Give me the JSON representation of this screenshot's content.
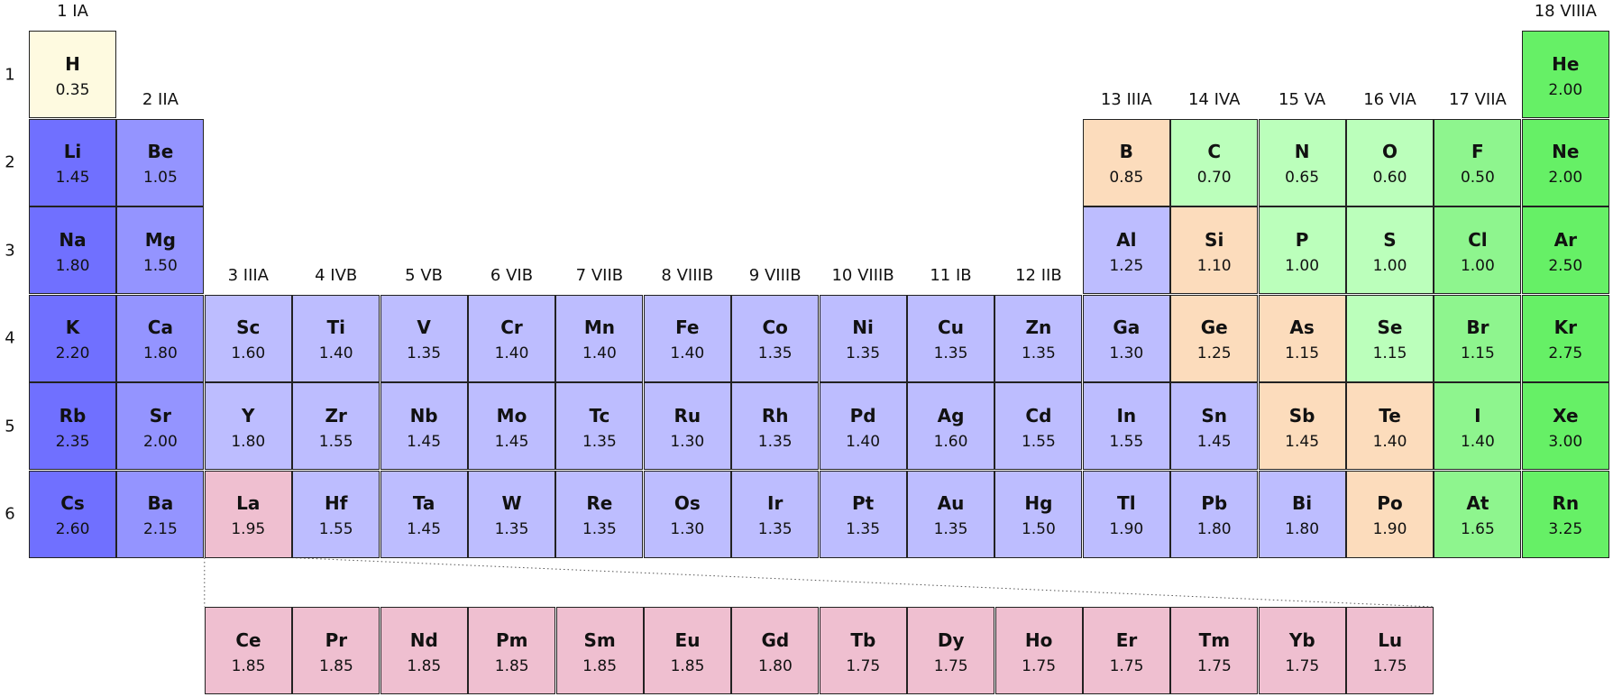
{
  "colors": {
    "hydrogen": "#fefae0",
    "alkali": "#7070ff",
    "alkaline_earth": "#9494ff",
    "metal": "#bdbdff",
    "metalloid": "#fcdcbc",
    "nonmetal": "#bbffbb",
    "halogen": "#8ef58e",
    "noble_gas": "#66f066",
    "lanthanide": "#efbfd0",
    "border": "#222222"
  },
  "group_labels": [
    {
      "group": 1,
      "row": 1,
      "text": "1 IA"
    },
    {
      "group": 2,
      "row": 2,
      "text": "2 IIA"
    },
    {
      "group": 3,
      "row": 4,
      "text": "3 IIIA"
    },
    {
      "group": 4,
      "row": 4,
      "text": "4 IVB"
    },
    {
      "group": 5,
      "row": 4,
      "text": "5 VB"
    },
    {
      "group": 6,
      "row": 4,
      "text": "6 VIB"
    },
    {
      "group": 7,
      "row": 4,
      "text": "7 VIIB"
    },
    {
      "group": 8,
      "row": 4,
      "text": "8 VIIIB"
    },
    {
      "group": 9,
      "row": 4,
      "text": "9 VIIIB"
    },
    {
      "group": 10,
      "row": 4,
      "text": "10 VIIIB"
    },
    {
      "group": 11,
      "row": 4,
      "text": "11 IB"
    },
    {
      "group": 12,
      "row": 4,
      "text": "12 IIB"
    },
    {
      "group": 13,
      "row": 2,
      "text": "13 IIIA"
    },
    {
      "group": 14,
      "row": 2,
      "text": "14 IVA"
    },
    {
      "group": 15,
      "row": 2,
      "text": "15 VA"
    },
    {
      "group": 16,
      "row": 2,
      "text": "16 VIA"
    },
    {
      "group": 17,
      "row": 2,
      "text": "17 VIIA"
    },
    {
      "group": 18,
      "row": 1,
      "text": "18 VIIIA"
    }
  ],
  "period_labels": [
    "1",
    "2",
    "3",
    "4",
    "5",
    "6"
  ],
  "elements": [
    {
      "symbol": "H",
      "value": "0.35",
      "period": 1,
      "group": 1,
      "category": "hydrogen"
    },
    {
      "symbol": "He",
      "value": "2.00",
      "period": 1,
      "group": 18,
      "category": "noble_gas"
    },
    {
      "symbol": "Li",
      "value": "1.45",
      "period": 2,
      "group": 1,
      "category": "alkali"
    },
    {
      "symbol": "Be",
      "value": "1.05",
      "period": 2,
      "group": 2,
      "category": "alkaline_earth"
    },
    {
      "symbol": "B",
      "value": "0.85",
      "period": 2,
      "group": 13,
      "category": "metalloid"
    },
    {
      "symbol": "C",
      "value": "0.70",
      "period": 2,
      "group": 14,
      "category": "nonmetal"
    },
    {
      "symbol": "N",
      "value": "0.65",
      "period": 2,
      "group": 15,
      "category": "nonmetal"
    },
    {
      "symbol": "O",
      "value": "0.60",
      "period": 2,
      "group": 16,
      "category": "nonmetal"
    },
    {
      "symbol": "F",
      "value": "0.50",
      "period": 2,
      "group": 17,
      "category": "halogen"
    },
    {
      "symbol": "Ne",
      "value": "2.00",
      "period": 2,
      "group": 18,
      "category": "noble_gas"
    },
    {
      "symbol": "Na",
      "value": "1.80",
      "period": 3,
      "group": 1,
      "category": "alkali"
    },
    {
      "symbol": "Mg",
      "value": "1.50",
      "period": 3,
      "group": 2,
      "category": "alkaline_earth"
    },
    {
      "symbol": "Al",
      "value": "1.25",
      "period": 3,
      "group": 13,
      "category": "metal"
    },
    {
      "symbol": "Si",
      "value": "1.10",
      "period": 3,
      "group": 14,
      "category": "metalloid"
    },
    {
      "symbol": "P",
      "value": "1.00",
      "period": 3,
      "group": 15,
      "category": "nonmetal"
    },
    {
      "symbol": "S",
      "value": "1.00",
      "period": 3,
      "group": 16,
      "category": "nonmetal"
    },
    {
      "symbol": "Cl",
      "value": "1.00",
      "period": 3,
      "group": 17,
      "category": "halogen"
    },
    {
      "symbol": "Ar",
      "value": "2.50",
      "period": 3,
      "group": 18,
      "category": "noble_gas"
    },
    {
      "symbol": "K",
      "value": "2.20",
      "period": 4,
      "group": 1,
      "category": "alkali"
    },
    {
      "symbol": "Ca",
      "value": "1.80",
      "period": 4,
      "group": 2,
      "category": "alkaline_earth"
    },
    {
      "symbol": "Sc",
      "value": "1.60",
      "period": 4,
      "group": 3,
      "category": "metal"
    },
    {
      "symbol": "Ti",
      "value": "1.40",
      "period": 4,
      "group": 4,
      "category": "metal"
    },
    {
      "symbol": "V",
      "value": "1.35",
      "period": 4,
      "group": 5,
      "category": "metal"
    },
    {
      "symbol": "Cr",
      "value": "1.40",
      "period": 4,
      "group": 6,
      "category": "metal"
    },
    {
      "symbol": "Mn",
      "value": "1.40",
      "period": 4,
      "group": 7,
      "category": "metal"
    },
    {
      "symbol": "Fe",
      "value": "1.40",
      "period": 4,
      "group": 8,
      "category": "metal"
    },
    {
      "symbol": "Co",
      "value": "1.35",
      "period": 4,
      "group": 9,
      "category": "metal"
    },
    {
      "symbol": "Ni",
      "value": "1.35",
      "period": 4,
      "group": 10,
      "category": "metal"
    },
    {
      "symbol": "Cu",
      "value": "1.35",
      "period": 4,
      "group": 11,
      "category": "metal"
    },
    {
      "symbol": "Zn",
      "value": "1.35",
      "period": 4,
      "group": 12,
      "category": "metal"
    },
    {
      "symbol": "Ga",
      "value": "1.30",
      "period": 4,
      "group": 13,
      "category": "metal"
    },
    {
      "symbol": "Ge",
      "value": "1.25",
      "period": 4,
      "group": 14,
      "category": "metalloid"
    },
    {
      "symbol": "As",
      "value": "1.15",
      "period": 4,
      "group": 15,
      "category": "metalloid"
    },
    {
      "symbol": "Se",
      "value": "1.15",
      "period": 4,
      "group": 16,
      "category": "nonmetal"
    },
    {
      "symbol": "Br",
      "value": "1.15",
      "period": 4,
      "group": 17,
      "category": "halogen"
    },
    {
      "symbol": "Kr",
      "value": "2.75",
      "period": 4,
      "group": 18,
      "category": "noble_gas"
    },
    {
      "symbol": "Rb",
      "value": "2.35",
      "period": 5,
      "group": 1,
      "category": "alkali"
    },
    {
      "symbol": "Sr",
      "value": "2.00",
      "period": 5,
      "group": 2,
      "category": "alkaline_earth"
    },
    {
      "symbol": "Y",
      "value": "1.80",
      "period": 5,
      "group": 3,
      "category": "metal"
    },
    {
      "symbol": "Zr",
      "value": "1.55",
      "period": 5,
      "group": 4,
      "category": "metal"
    },
    {
      "symbol": "Nb",
      "value": "1.45",
      "period": 5,
      "group": 5,
      "category": "metal"
    },
    {
      "symbol": "Mo",
      "value": "1.45",
      "period": 5,
      "group": 6,
      "category": "metal"
    },
    {
      "symbol": "Tc",
      "value": "1.35",
      "period": 5,
      "group": 7,
      "category": "metal"
    },
    {
      "symbol": "Ru",
      "value": "1.30",
      "period": 5,
      "group": 8,
      "category": "metal"
    },
    {
      "symbol": "Rh",
      "value": "1.35",
      "period": 5,
      "group": 9,
      "category": "metal"
    },
    {
      "symbol": "Pd",
      "value": "1.40",
      "period": 5,
      "group": 10,
      "category": "metal"
    },
    {
      "symbol": "Ag",
      "value": "1.60",
      "period": 5,
      "group": 11,
      "category": "metal"
    },
    {
      "symbol": "Cd",
      "value": "1.55",
      "period": 5,
      "group": 12,
      "category": "metal"
    },
    {
      "symbol": "In",
      "value": "1.55",
      "period": 5,
      "group": 13,
      "category": "metal"
    },
    {
      "symbol": "Sn",
      "value": "1.45",
      "period": 5,
      "group": 14,
      "category": "metal"
    },
    {
      "symbol": "Sb",
      "value": "1.45",
      "period": 5,
      "group": 15,
      "category": "metalloid"
    },
    {
      "symbol": "Te",
      "value": "1.40",
      "period": 5,
      "group": 16,
      "category": "metalloid"
    },
    {
      "symbol": "I",
      "value": "1.40",
      "period": 5,
      "group": 17,
      "category": "halogen"
    },
    {
      "symbol": "Xe",
      "value": "3.00",
      "period": 5,
      "group": 18,
      "category": "noble_gas"
    },
    {
      "symbol": "Cs",
      "value": "2.60",
      "period": 6,
      "group": 1,
      "category": "alkali"
    },
    {
      "symbol": "Ba",
      "value": "2.15",
      "period": 6,
      "group": 2,
      "category": "alkaline_earth"
    },
    {
      "symbol": "La",
      "value": "1.95",
      "period": 6,
      "group": 3,
      "category": "lanthanide"
    },
    {
      "symbol": "Hf",
      "value": "1.55",
      "period": 6,
      "group": 4,
      "category": "metal"
    },
    {
      "symbol": "Ta",
      "value": "1.45",
      "period": 6,
      "group": 5,
      "category": "metal"
    },
    {
      "symbol": "W",
      "value": "1.35",
      "period": 6,
      "group": 6,
      "category": "metal"
    },
    {
      "symbol": "Re",
      "value": "1.35",
      "period": 6,
      "group": 7,
      "category": "metal"
    },
    {
      "symbol": "Os",
      "value": "1.30",
      "period": 6,
      "group": 8,
      "category": "metal"
    },
    {
      "symbol": "Ir",
      "value": "1.35",
      "period": 6,
      "group": 9,
      "category": "metal"
    },
    {
      "symbol": "Pt",
      "value": "1.35",
      "period": 6,
      "group": 10,
      "category": "metal"
    },
    {
      "symbol": "Au",
      "value": "1.35",
      "period": 6,
      "group": 11,
      "category": "metal"
    },
    {
      "symbol": "Hg",
      "value": "1.50",
      "period": 6,
      "group": 12,
      "category": "metal"
    },
    {
      "symbol": "Tl",
      "value": "1.90",
      "period": 6,
      "group": 13,
      "category": "metal"
    },
    {
      "symbol": "Pb",
      "value": "1.80",
      "period": 6,
      "group": 14,
      "category": "metal"
    },
    {
      "symbol": "Bi",
      "value": "1.80",
      "period": 6,
      "group": 15,
      "category": "metal"
    },
    {
      "symbol": "Po",
      "value": "1.90",
      "period": 6,
      "group": 16,
      "category": "metalloid"
    },
    {
      "symbol": "At",
      "value": "1.65",
      "period": 6,
      "group": 17,
      "category": "halogen"
    },
    {
      "symbol": "Rn",
      "value": "3.25",
      "period": 6,
      "group": 18,
      "category": "noble_gas"
    }
  ],
  "lanthanides": [
    {
      "symbol": "Ce",
      "value": "1.85"
    },
    {
      "symbol": "Pr",
      "value": "1.85"
    },
    {
      "symbol": "Nd",
      "value": "1.85"
    },
    {
      "symbol": "Pm",
      "value": "1.85"
    },
    {
      "symbol": "Sm",
      "value": "1.85"
    },
    {
      "symbol": "Eu",
      "value": "1.85"
    },
    {
      "symbol": "Gd",
      "value": "1.80"
    },
    {
      "symbol": "Tb",
      "value": "1.75"
    },
    {
      "symbol": "Dy",
      "value": "1.75"
    },
    {
      "symbol": "Ho",
      "value": "1.75"
    },
    {
      "symbol": "Er",
      "value": "1.75"
    },
    {
      "symbol": "Tm",
      "value": "1.75"
    },
    {
      "symbol": "Yb",
      "value": "1.75"
    },
    {
      "symbol": "Lu",
      "value": "1.75"
    }
  ]
}
